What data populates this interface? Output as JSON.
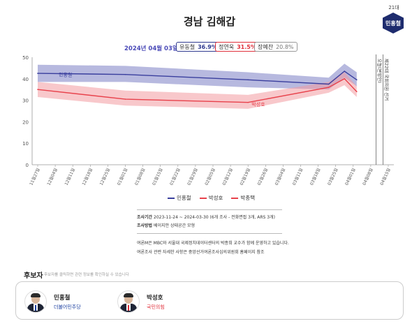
{
  "title": "경남 김해갑",
  "badge": {
    "label": "21대",
    "name": "민홍철"
  },
  "poll_header": {
    "date": "2024년 04월 03일",
    "results": [
      {
        "name": "유동철",
        "pct": "36.9%"
      },
      {
        "name": "정연욱",
        "pct": "31.5%"
      },
      {
        "name": "장예찬",
        "pct": "20.8%"
      }
    ]
  },
  "chart_data": {
    "type": "line",
    "ylim": [
      0,
      50
    ],
    "yticks": [
      0,
      10,
      20,
      30,
      40,
      50
    ],
    "categories": [
      "11월27일",
      "12월04일",
      "12월11일",
      "12월18일",
      "12월25일",
      "01월01일",
      "01월08일",
      "01월15일",
      "01월22일",
      "01월29일",
      "02월05일",
      "02월12일",
      "02월19일",
      "02월26일",
      "03월04일",
      "03월11일",
      "03월18일",
      "03월25일",
      "04월01일",
      "04월08일",
      "04월15일"
    ],
    "series": [
      {
        "name": "민홍철",
        "color": "#3a3f9e",
        "band_color": "#7c80c4",
        "x": [
          0,
          5,
          12,
          16.6,
          17.5,
          18.2
        ],
        "mid": [
          42.5,
          42,
          39.5,
          37.5,
          43.5,
          39.5
        ],
        "lo": [
          38.5,
          38.5,
          36,
          35,
          40.5,
          36.5
        ],
        "hi": [
          46.5,
          46,
          43,
          40.5,
          47,
          43
        ]
      },
      {
        "name": "박성호",
        "color": "#e8414b",
        "band_color": "#f29aa0",
        "x": [
          0,
          5,
          12,
          16.6,
          17.5,
          18.2
        ],
        "mid": [
          35,
          30.5,
          29,
          36,
          40,
          34
        ],
        "lo": [
          31.5,
          27.5,
          26,
          33.5,
          37,
          31.5
        ],
        "hi": [
          38.5,
          34.5,
          32.5,
          38.5,
          43,
          36.5
        ]
      }
    ],
    "series_labels": [
      {
        "series": 0,
        "text": "민홍철",
        "x": 1.2,
        "y": 41
      },
      {
        "series": 1,
        "text": "박성호",
        "x": 12.2,
        "y": 27.2
      }
    ],
    "event_lines": [
      {
        "x": 19.3,
        "text": "오늘(본방안)"
      },
      {
        "x": 19.7,
        "text": "제22대 국회의원 선거"
      }
    ],
    "legend": [
      {
        "name": "민홍철",
        "color": "#3a3f9e"
      },
      {
        "name": "박성호",
        "color": "#e8414b"
      },
      {
        "name": "박종택",
        "color": "#e8414b"
      }
    ]
  },
  "notes": {
    "line1_label": "조사기간",
    "line1": "2023-11-24 ~ 2024-03-30 (6개 조사 - 전화면접 3개, ARS 3개)",
    "line2_label": "조사방법",
    "line2": "베이지안 상태공간 모형",
    "line3": "여론M은 MBC와 서울대 국제정치데이터센터의 박종희 교수가 함께 운영하고 있습니다.",
    "line4": "여론조사 관련 자세한 사항은 중앙선거여론조사심의위원회 홈페이지 참조"
  },
  "candidates_section": {
    "heading": "후보자",
    "subtext": "후보자를 클릭하면 관련 정보를 확인하실 수 있습니다",
    "items": [
      {
        "name": "민홍철",
        "party": "더불어민주당",
        "party_color": "#1b3fa0"
      },
      {
        "name": "박성호",
        "party": "국민의힘",
        "party_color": "#e0303b"
      }
    ]
  }
}
